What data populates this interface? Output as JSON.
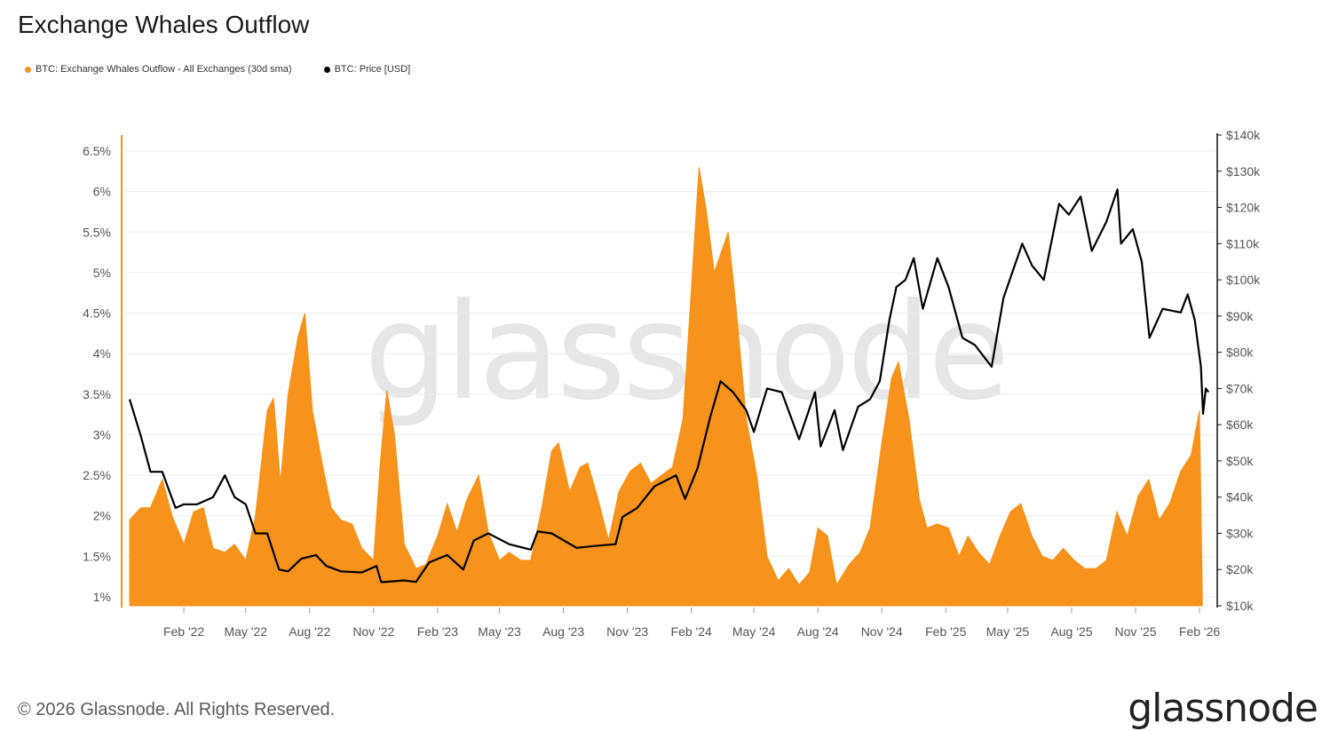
{
  "title": "Exchange Whales Outflow",
  "footer": "© 2026 Glassnode. All Rights Reserved.",
  "brand": "glassnode",
  "watermark": "glassnode",
  "colors": {
    "outflow": "#F7931A",
    "price": "#000000"
  },
  "legend": [
    {
      "label": "BTC: Exchange Whales Outflow - All Exchanges (30d sma)",
      "color": "#F7931A"
    },
    {
      "label": "BTC: Price [USD]",
      "color": "#000000"
    }
  ],
  "chart_data": {
    "type": "area",
    "left_axis": {
      "ticks": [
        "1%",
        "1.5%",
        "2%",
        "2.5%",
        "3%",
        "3.5%",
        "4%",
        "4.5%",
        "5%",
        "5.5%",
        "6%",
        "6.5%"
      ],
      "range": [
        1.0,
        6.5
      ]
    },
    "right_axis": {
      "ticks": [
        "$10k",
        "$20k",
        "$30k",
        "$40k",
        "$50k",
        "$60k",
        "$70k",
        "$80k",
        "$90k",
        "$100k",
        "$110k",
        "$120k",
        "$130k",
        "$140k"
      ],
      "range": [
        10000,
        140000
      ]
    },
    "x_ticks": [
      "Feb '22",
      "May '22",
      "Aug '22",
      "Nov '22",
      "Feb '23",
      "May '23",
      "Aug '23",
      "Nov '23",
      "Feb '24",
      "May '24",
      "Aug '24",
      "Nov '24",
      "Feb '25",
      "May '25",
      "Aug '25",
      "Nov '25",
      "Feb '26"
    ],
    "x_range": [
      "2021-11-15",
      "2026-02-15"
    ],
    "series": [
      {
        "name": "BTC: Exchange Whales Outflow - All Exchanges (30d sma)",
        "axis": "left",
        "points": [
          [
            "2021-11-15",
            1.95
          ],
          [
            "2021-12-01",
            2.1
          ],
          [
            "2021-12-15",
            2.1
          ],
          [
            "2022-01-01",
            2.45
          ],
          [
            "2022-01-15",
            2.0
          ],
          [
            "2022-02-01",
            1.65
          ],
          [
            "2022-02-15",
            2.05
          ],
          [
            "2022-03-01",
            2.1
          ],
          [
            "2022-03-15",
            1.6
          ],
          [
            "2022-04-01",
            1.55
          ],
          [
            "2022-04-15",
            1.65
          ],
          [
            "2022-05-01",
            1.45
          ],
          [
            "2022-05-15",
            2.0
          ],
          [
            "2022-06-01",
            3.3
          ],
          [
            "2022-06-10",
            3.45
          ],
          [
            "2022-06-20",
            2.4
          ],
          [
            "2022-07-01",
            3.5
          ],
          [
            "2022-07-15",
            4.2
          ],
          [
            "2022-07-25",
            4.5
          ],
          [
            "2022-08-05",
            3.3
          ],
          [
            "2022-08-20",
            2.6
          ],
          [
            "2022-09-01",
            2.1
          ],
          [
            "2022-09-15",
            1.95
          ],
          [
            "2022-10-01",
            1.9
          ],
          [
            "2022-10-15",
            1.6
          ],
          [
            "2022-11-01",
            1.45
          ],
          [
            "2022-11-10",
            2.6
          ],
          [
            "2022-11-20",
            3.55
          ],
          [
            "2022-12-01",
            3.0
          ],
          [
            "2022-12-15",
            1.65
          ],
          [
            "2023-01-01",
            1.35
          ],
          [
            "2023-01-15",
            1.4
          ],
          [
            "2023-02-01",
            1.75
          ],
          [
            "2023-02-15",
            2.15
          ],
          [
            "2023-03-01",
            1.8
          ],
          [
            "2023-03-15",
            2.2
          ],
          [
            "2023-04-01",
            2.5
          ],
          [
            "2023-04-15",
            1.8
          ],
          [
            "2023-05-01",
            1.45
          ],
          [
            "2023-05-15",
            1.55
          ],
          [
            "2023-06-01",
            1.45
          ],
          [
            "2023-06-15",
            1.45
          ],
          [
            "2023-07-01",
            2.1
          ],
          [
            "2023-07-15",
            2.8
          ],
          [
            "2023-07-25",
            2.9
          ],
          [
            "2023-08-10",
            2.3
          ],
          [
            "2023-08-25",
            2.6
          ],
          [
            "2023-09-05",
            2.65
          ],
          [
            "2023-09-20",
            2.2
          ],
          [
            "2023-10-05",
            1.7
          ],
          [
            "2023-10-20",
            2.3
          ],
          [
            "2023-11-05",
            2.55
          ],
          [
            "2023-11-20",
            2.65
          ],
          [
            "2023-12-05",
            2.4
          ],
          [
            "2023-12-20",
            2.5
          ],
          [
            "2024-01-05",
            2.6
          ],
          [
            "2024-01-20",
            3.2
          ],
          [
            "2024-02-01",
            4.8
          ],
          [
            "2024-02-12",
            6.3
          ],
          [
            "2024-02-22",
            5.8
          ],
          [
            "2024-03-05",
            5.0
          ],
          [
            "2024-03-15",
            5.25
          ],
          [
            "2024-03-25",
            5.5
          ],
          [
            "2024-04-05",
            4.6
          ],
          [
            "2024-04-20",
            3.2
          ],
          [
            "2024-05-05",
            2.5
          ],
          [
            "2024-05-20",
            1.5
          ],
          [
            "2024-06-05",
            1.2
          ],
          [
            "2024-06-20",
            1.35
          ],
          [
            "2024-07-05",
            1.15
          ],
          [
            "2024-07-20",
            1.3
          ],
          [
            "2024-08-01",
            1.85
          ],
          [
            "2024-08-15",
            1.75
          ],
          [
            "2024-08-28",
            1.15
          ],
          [
            "2024-09-15",
            1.4
          ],
          [
            "2024-10-01",
            1.55
          ],
          [
            "2024-10-15",
            1.85
          ],
          [
            "2024-11-01",
            2.9
          ],
          [
            "2024-11-15",
            3.7
          ],
          [
            "2024-11-25",
            3.9
          ],
          [
            "2024-12-10",
            3.2
          ],
          [
            "2024-12-25",
            2.2
          ],
          [
            "2025-01-05",
            1.85
          ],
          [
            "2025-01-20",
            1.9
          ],
          [
            "2025-02-05",
            1.85
          ],
          [
            "2025-02-20",
            1.5
          ],
          [
            "2025-03-05",
            1.75
          ],
          [
            "2025-03-20",
            1.55
          ],
          [
            "2025-04-05",
            1.4
          ],
          [
            "2025-04-20",
            1.75
          ],
          [
            "2025-05-05",
            2.05
          ],
          [
            "2025-05-20",
            2.15
          ],
          [
            "2025-06-05",
            1.75
          ],
          [
            "2025-06-20",
            1.5
          ],
          [
            "2025-07-05",
            1.45
          ],
          [
            "2025-07-20",
            1.6
          ],
          [
            "2025-08-05",
            1.45
          ],
          [
            "2025-08-20",
            1.35
          ],
          [
            "2025-09-05",
            1.35
          ],
          [
            "2025-09-20",
            1.45
          ],
          [
            "2025-10-05",
            2.05
          ],
          [
            "2025-10-20",
            1.75
          ],
          [
            "2025-11-05",
            2.25
          ],
          [
            "2025-11-20",
            2.45
          ],
          [
            "2025-12-05",
            1.95
          ],
          [
            "2025-12-20",
            2.15
          ],
          [
            "2026-01-05",
            2.55
          ],
          [
            "2026-01-20",
            2.75
          ],
          [
            "2026-02-01",
            3.3
          ],
          [
            "2026-02-05",
            1.0
          ]
        ]
      },
      {
        "name": "BTC: Price [USD]",
        "axis": "right",
        "points": [
          [
            "2021-11-15",
            67000
          ],
          [
            "2021-12-01",
            57000
          ],
          [
            "2021-12-15",
            47000
          ],
          [
            "2022-01-01",
            47000
          ],
          [
            "2022-01-20",
            37000
          ],
          [
            "2022-02-01",
            38000
          ],
          [
            "2022-02-20",
            38000
          ],
          [
            "2022-03-15",
            40000
          ],
          [
            "2022-04-01",
            46000
          ],
          [
            "2022-04-15",
            40000
          ],
          [
            "2022-05-01",
            38000
          ],
          [
            "2022-05-15",
            30000
          ],
          [
            "2022-06-01",
            30000
          ],
          [
            "2022-06-18",
            20000
          ],
          [
            "2022-07-01",
            19500
          ],
          [
            "2022-07-20",
            23000
          ],
          [
            "2022-08-10",
            24000
          ],
          [
            "2022-08-25",
            21000
          ],
          [
            "2022-09-15",
            19500
          ],
          [
            "2022-10-15",
            19200
          ],
          [
            "2022-11-05",
            21000
          ],
          [
            "2022-11-12",
            16500
          ],
          [
            "2022-12-15",
            17000
          ],
          [
            "2023-01-01",
            16600
          ],
          [
            "2023-01-20",
            22000
          ],
          [
            "2023-02-15",
            24000
          ],
          [
            "2023-03-10",
            20000
          ],
          [
            "2023-03-25",
            28000
          ],
          [
            "2023-04-15",
            30000
          ],
          [
            "2023-05-15",
            27000
          ],
          [
            "2023-06-15",
            25500
          ],
          [
            "2023-06-25",
            30500
          ],
          [
            "2023-07-15",
            30000
          ],
          [
            "2023-08-20",
            26000
          ],
          [
            "2023-09-15",
            26500
          ],
          [
            "2023-10-15",
            27000
          ],
          [
            "2023-10-25",
            34500
          ],
          [
            "2023-11-15",
            37000
          ],
          [
            "2023-12-10",
            43000
          ],
          [
            "2024-01-10",
            46000
          ],
          [
            "2024-01-23",
            39500
          ],
          [
            "2024-02-10",
            48000
          ],
          [
            "2024-02-28",
            62000
          ],
          [
            "2024-03-14",
            72000
          ],
          [
            "2024-04-01",
            69000
          ],
          [
            "2024-04-20",
            64000
          ],
          [
            "2024-05-01",
            58000
          ],
          [
            "2024-05-20",
            70000
          ],
          [
            "2024-06-10",
            69000
          ],
          [
            "2024-07-05",
            56000
          ],
          [
            "2024-07-28",
            69000
          ],
          [
            "2024-08-05",
            54000
          ],
          [
            "2024-08-25",
            64000
          ],
          [
            "2024-09-06",
            53000
          ],
          [
            "2024-09-28",
            65000
          ],
          [
            "2024-10-15",
            67000
          ],
          [
            "2024-10-29",
            72000
          ],
          [
            "2024-11-12",
            89000
          ],
          [
            "2024-11-22",
            98000
          ],
          [
            "2024-12-05",
            100000
          ],
          [
            "2024-12-17",
            106000
          ],
          [
            "2024-12-30",
            92000
          ],
          [
            "2025-01-20",
            106000
          ],
          [
            "2025-02-05",
            98000
          ],
          [
            "2025-02-25",
            84000
          ],
          [
            "2025-03-15",
            82000
          ],
          [
            "2025-04-08",
            76000
          ],
          [
            "2025-04-25",
            95000
          ],
          [
            "2025-05-22",
            110000
          ],
          [
            "2025-06-05",
            104000
          ],
          [
            "2025-06-22",
            100000
          ],
          [
            "2025-07-14",
            121000
          ],
          [
            "2025-07-28",
            118000
          ],
          [
            "2025-08-14",
            123000
          ],
          [
            "2025-08-30",
            108000
          ],
          [
            "2025-09-20",
            116000
          ],
          [
            "2025-10-06",
            125000
          ],
          [
            "2025-10-11",
            110000
          ],
          [
            "2025-10-28",
            114000
          ],
          [
            "2025-11-10",
            105000
          ],
          [
            "2025-11-21",
            84000
          ],
          [
            "2025-12-10",
            92000
          ],
          [
            "2026-01-05",
            91000
          ],
          [
            "2026-01-15",
            96000
          ],
          [
            "2026-01-25",
            89000
          ],
          [
            "2026-02-03",
            76000
          ],
          [
            "2026-02-06",
            63000
          ],
          [
            "2026-02-10",
            70000
          ],
          [
            "2026-02-14",
            69000
          ]
        ]
      }
    ]
  }
}
